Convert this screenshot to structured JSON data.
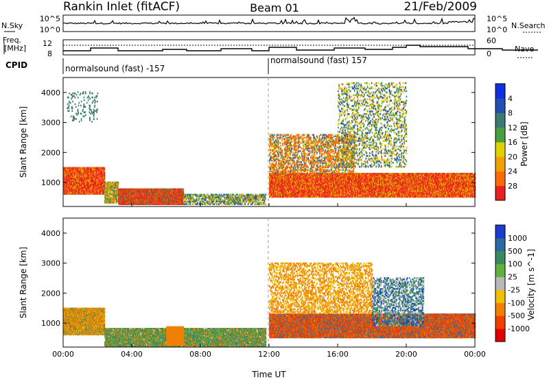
{
  "header": {
    "title": "Rankin Inlet (fitACF)",
    "beam": "Beam 01",
    "date": "21/Feb/2009"
  },
  "noise_panel": {
    "left_label": "N.Sky",
    "right_label": "N.Search",
    "left_ticks": [
      "10^5",
      "10^0"
    ],
    "right_ticks": [
      "10^5",
      "10^0"
    ]
  },
  "freq_panel": {
    "left_label_1": "Freq.",
    "left_label_2": "[MHz]",
    "left_ticks": [
      "12",
      "8"
    ],
    "right_label": "Nave",
    "right_ticks": [
      "60",
      "0"
    ]
  },
  "cpid_panel": {
    "label": "CPID",
    "segments": [
      {
        "text": "normalsound (fast) -157"
      },
      {
        "text": "normalsound (fast) 157"
      }
    ]
  },
  "chart_data": [
    {
      "type": "heatmap",
      "name": "power",
      "ylabel": "Slant Range [km]",
      "xlabel": "",
      "xlim": [
        0,
        24
      ],
      "ylim": [
        200,
        4500
      ],
      "ytick_labels": [
        "1000",
        "2000",
        "3000",
        "4000"
      ],
      "ytick_values": [
        1000,
        2000,
        3000,
        4000
      ],
      "colorbar_label": "Power [dB]",
      "colorbar_ticks": [
        "4",
        "8",
        "12",
        "16",
        "20",
        "24",
        "28"
      ],
      "colorbar_colors": [
        "#1030e0",
        "#2050b0",
        "#3a7a70",
        "#4aa040",
        "#e0d000",
        "#f0a000",
        "#ff6a00",
        "#e82020"
      ]
    },
    {
      "type": "heatmap",
      "name": "velocity",
      "ylabel": "Slant Range [km]",
      "xlabel": "Time UT",
      "xlim": [
        0,
        24
      ],
      "ylim": [
        200,
        4500
      ],
      "ytick_labels": [
        "1000",
        "2000",
        "3000",
        "4000"
      ],
      "ytick_values": [
        1000,
        2000,
        3000,
        4000
      ],
      "xtick_labels": [
        "00:00",
        "04:00",
        "08:00",
        "12:00",
        "16:00",
        "20:00",
        "00:00"
      ],
      "xtick_values": [
        0,
        4,
        8,
        12,
        16,
        20,
        24
      ],
      "colorbar_label": "Velocity [m s^-1]",
      "colorbar_ticks": [
        "1000",
        "500",
        "100",
        "25",
        "-25",
        "-100",
        "-500",
        "-1000"
      ],
      "colorbar_colors": [
        "#1a3ad0",
        "#2a6aa0",
        "#3a8a60",
        "#60b040",
        "#b8b8b8",
        "#f0c000",
        "#f08000",
        "#f04000",
        "#e00000"
      ]
    }
  ]
}
